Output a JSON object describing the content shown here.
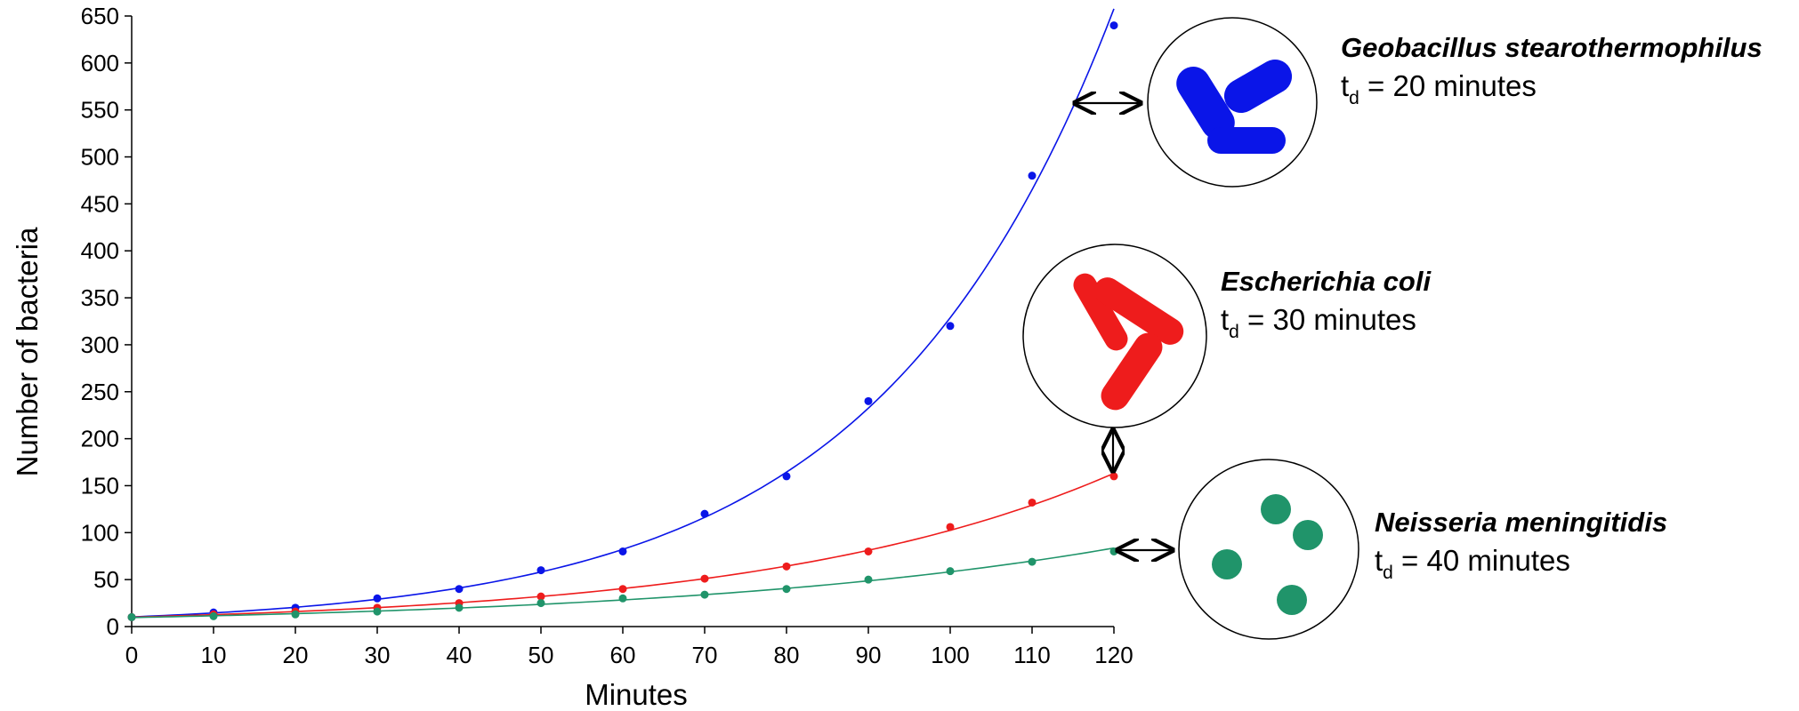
{
  "chart_data": {
    "type": "scatter",
    "xlabel": "Minutes",
    "ylabel": "Number of bacteria",
    "xlim": [
      0,
      120
    ],
    "ylim": [
      0,
      650
    ],
    "x_ticks": [
      "0",
      "10",
      "20",
      "30",
      "40",
      "50",
      "60",
      "70",
      "80",
      "90",
      "100",
      "110",
      "120"
    ],
    "y_ticks": [
      "0",
      "50",
      "100",
      "150",
      "200",
      "250",
      "300",
      "350",
      "400",
      "450",
      "500",
      "550",
      "600",
      "650"
    ],
    "grid": false,
    "legend": "none",
    "x": [
      0,
      10,
      20,
      30,
      40,
      50,
      60,
      70,
      80,
      90,
      100,
      110,
      120
    ],
    "series": [
      {
        "color": "#0a15e8",
        "values": [
          10,
          15,
          20,
          30,
          40,
          60,
          80,
          120,
          160,
          240,
          320,
          480,
          640
        ],
        "annotation": {
          "name": "Geobacillus stearothermophilus",
          "td_prefix": "t",
          "td_sub": "d",
          "td_text": " = 20 minutes"
        }
      },
      {
        "color": "#ee1c1c",
        "values": [
          10,
          13,
          16,
          20,
          25,
          32,
          40,
          51,
          64,
          80,
          106,
          132,
          160
        ],
        "annotation": {
          "name": "Escherichia coli",
          "td_prefix": "t",
          "td_sub": "d",
          "td_text": " = 30 minutes"
        }
      },
      {
        "color": "#20946a",
        "values": [
          10,
          11,
          13,
          16,
          20,
          25,
          30,
          34,
          40,
          50,
          59,
          69,
          80
        ],
        "annotation": {
          "name": "Neisseria meningitidis",
          "td_prefix": "t",
          "td_sub": "d",
          "td_text": " = 40 minutes"
        }
      }
    ],
    "illustrations": [
      {
        "shape": "rod",
        "color": "#0a15e8",
        "count": 3
      },
      {
        "shape": "rod",
        "color": "#ee1c1c",
        "count": 3
      },
      {
        "shape": "coccus",
        "color": "#20946a",
        "count": 4
      }
    ]
  }
}
